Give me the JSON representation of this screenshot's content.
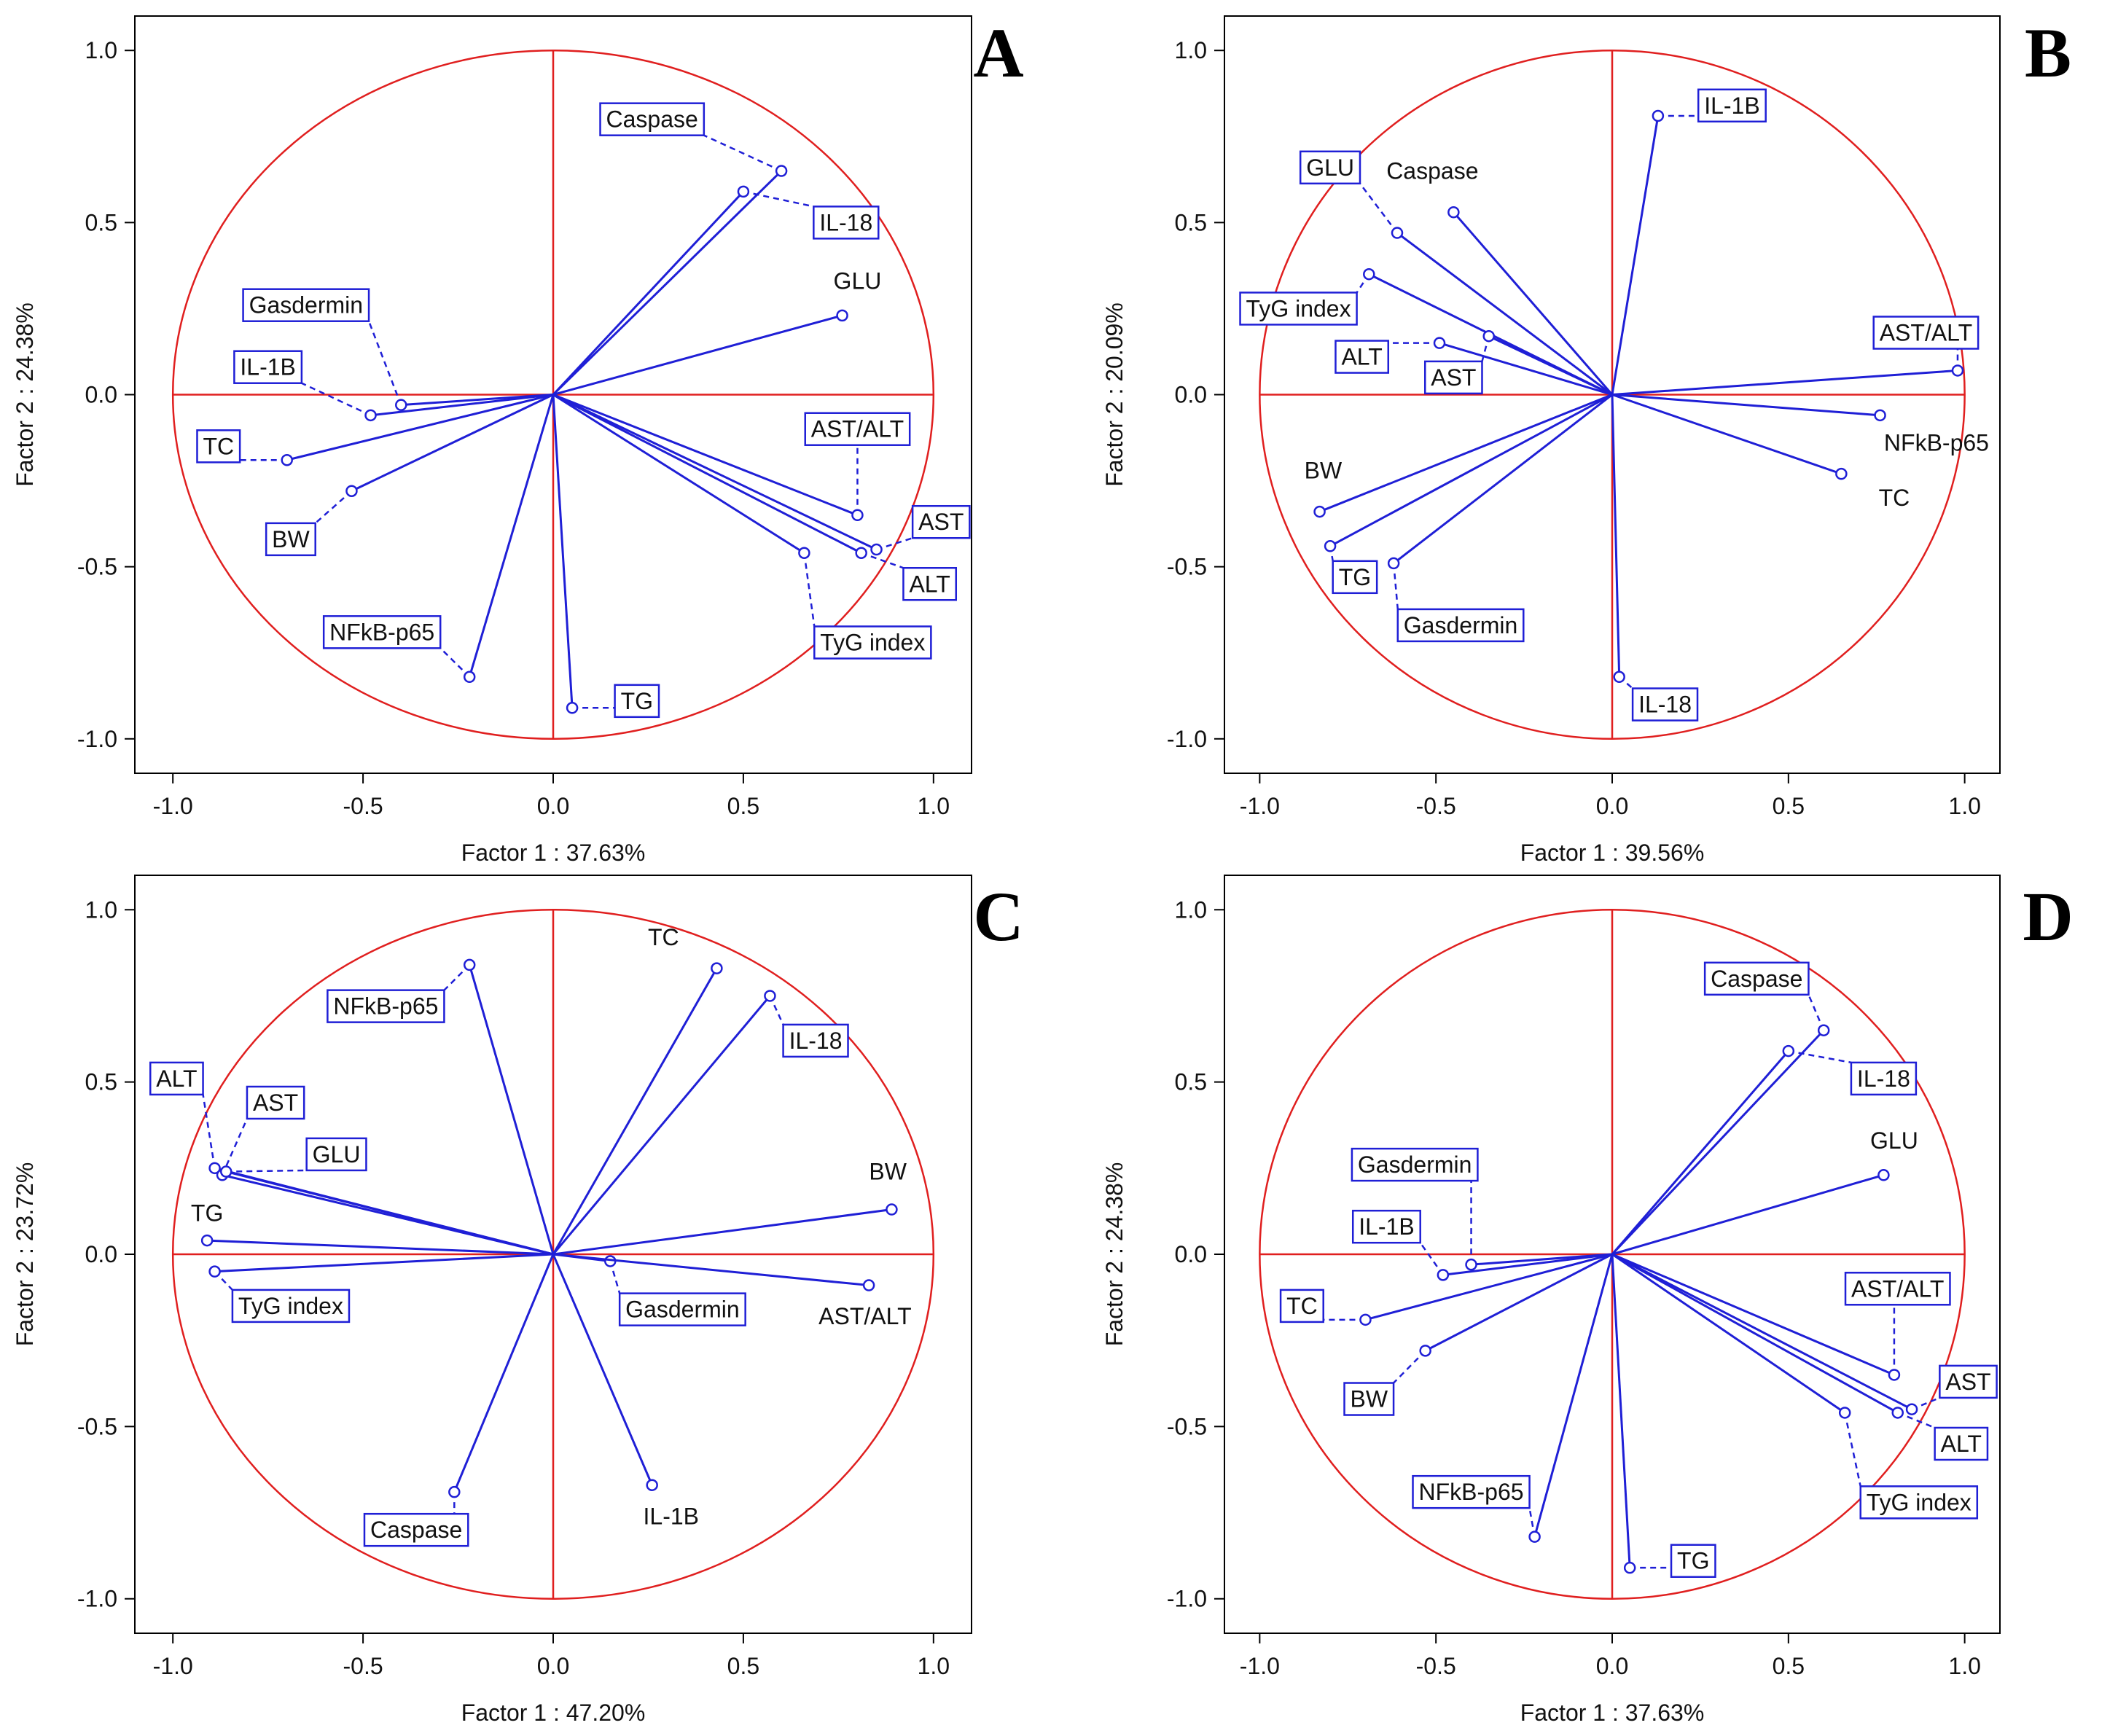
{
  "colors": {
    "vector": "#1f1fd6",
    "circle": "#e01f1f",
    "axis": "#000000"
  },
  "chart_data": [
    {
      "type": "scatter",
      "panel_label": "A",
      "xlabel": "Factor 1 : 37.63%",
      "ylabel": "Factor 2 : 24.38%",
      "xlim": [
        -1.1,
        1.1
      ],
      "ylim": [
        -1.1,
        1.1
      ],
      "xticks": [
        "-1.0",
        "-0.5",
        "0.0",
        "0.5",
        "1.0"
      ],
      "yticks": [
        "1.0",
        "0.5",
        "0.0",
        "-0.5",
        "-1.0"
      ],
      "points": [
        {
          "label": "Caspase",
          "x": 0.6,
          "y": 0.65,
          "boxed": true,
          "lx": 0.26,
          "ly": 0.8
        },
        {
          "label": "IL-18",
          "x": 0.5,
          "y": 0.59,
          "boxed": true,
          "lx": 0.77,
          "ly": 0.5
        },
        {
          "label": "GLU",
          "x": 0.76,
          "y": 0.23,
          "boxed": false,
          "lx": 0.8,
          "ly": 0.33
        },
        {
          "label": "Gasdermin",
          "x": -0.4,
          "y": -0.03,
          "boxed": true,
          "lx": -0.65,
          "ly": 0.26
        },
        {
          "label": "IL-1B",
          "x": -0.48,
          "y": -0.06,
          "boxed": true,
          "lx": -0.75,
          "ly": 0.08
        },
        {
          "label": "TC",
          "x": -0.7,
          "y": -0.19,
          "boxed": true,
          "lx": -0.88,
          "ly": -0.15
        },
        {
          "label": "BW",
          "x": -0.53,
          "y": -0.28,
          "boxed": true,
          "lx": -0.69,
          "ly": -0.42
        },
        {
          "label": "NFkB-p65",
          "x": -0.22,
          "y": -0.82,
          "boxed": true,
          "lx": -0.45,
          "ly": -0.69
        },
        {
          "label": "TG",
          "x": 0.05,
          "y": -0.91,
          "boxed": true,
          "lx": 0.22,
          "ly": -0.89
        },
        {
          "label": "AST/ALT",
          "x": 0.8,
          "y": -0.35,
          "boxed": true,
          "lx": 0.8,
          "ly": -0.1
        },
        {
          "label": "AST",
          "x": 0.85,
          "y": -0.45,
          "boxed": true,
          "lx": 1.02,
          "ly": -0.37
        },
        {
          "label": "ALT",
          "x": 0.81,
          "y": -0.46,
          "boxed": true,
          "lx": 0.99,
          "ly": -0.55
        },
        {
          "label": "TyG index",
          "x": 0.66,
          "y": -0.46,
          "boxed": true,
          "lx": 0.84,
          "ly": -0.72
        }
      ]
    },
    {
      "type": "scatter",
      "panel_label": "B",
      "xlabel": "Factor 1 : 39.56%",
      "ylabel": "Factor 2 : 20.09%",
      "xlim": [
        -1.1,
        1.1
      ],
      "ylim": [
        -1.1,
        1.1
      ],
      "xticks": [
        "-1.0",
        "-0.5",
        "0.0",
        "0.5",
        "1.0"
      ],
      "yticks": [
        "1.0",
        "0.5",
        "0.0",
        "-0.5",
        "-1.0"
      ],
      "points": [
        {
          "label": "IL-1B",
          "x": 0.13,
          "y": 0.81,
          "boxed": true,
          "lx": 0.34,
          "ly": 0.84
        },
        {
          "label": "Caspase",
          "x": -0.45,
          "y": 0.53,
          "boxed": false,
          "lx": -0.51,
          "ly": 0.65
        },
        {
          "label": "GLU",
          "x": -0.61,
          "y": 0.47,
          "boxed": true,
          "lx": -0.8,
          "ly": 0.66
        },
        {
          "label": "TyG index",
          "x": -0.69,
          "y": 0.35,
          "boxed": true,
          "lx": -0.89,
          "ly": 0.25
        },
        {
          "label": "ALT",
          "x": -0.49,
          "y": 0.15,
          "boxed": true,
          "lx": -0.71,
          "ly": 0.11
        },
        {
          "label": "AST",
          "x": -0.35,
          "y": 0.17,
          "boxed": true,
          "lx": -0.45,
          "ly": 0.05
        },
        {
          "label": "AST/ALT",
          "x": 0.98,
          "y": 0.07,
          "boxed": true,
          "lx": 0.89,
          "ly": 0.18
        },
        {
          "label": "NFkB-p65",
          "x": 0.76,
          "y": -0.06,
          "boxed": false,
          "lx": 0.92,
          "ly": -0.14
        },
        {
          "label": "TC",
          "x": 0.65,
          "y": -0.23,
          "boxed": false,
          "lx": 0.8,
          "ly": -0.3
        },
        {
          "label": "BW",
          "x": -0.83,
          "y": -0.34,
          "boxed": false,
          "lx": -0.82,
          "ly": -0.22
        },
        {
          "label": "TG",
          "x": -0.8,
          "y": -0.44,
          "boxed": true,
          "lx": -0.73,
          "ly": -0.53
        },
        {
          "label": "Gasdermin",
          "x": -0.62,
          "y": -0.49,
          "boxed": true,
          "lx": -0.43,
          "ly": -0.67
        },
        {
          "label": "IL-18",
          "x": 0.02,
          "y": -0.82,
          "boxed": true,
          "lx": 0.15,
          "ly": -0.9
        }
      ]
    },
    {
      "type": "scatter",
      "panel_label": "C",
      "xlabel": "Factor 1 : 47.20%",
      "ylabel": "Factor 2 : 23.72%",
      "xlim": [
        -1.1,
        1.1
      ],
      "ylim": [
        -1.1,
        1.1
      ],
      "xticks": [
        "-1.0",
        "-0.5",
        "0.0",
        "0.5",
        "1.0"
      ],
      "yticks": [
        "1.0",
        "0.5",
        "0.0",
        "-0.5",
        "-1.0"
      ],
      "points": [
        {
          "label": "NFkB-p65",
          "x": -0.22,
          "y": 0.84,
          "boxed": true,
          "lx": -0.44,
          "ly": 0.72
        },
        {
          "label": "TC",
          "x": 0.43,
          "y": 0.83,
          "boxed": false,
          "lx": 0.29,
          "ly": 0.92
        },
        {
          "label": "IL-18",
          "x": 0.57,
          "y": 0.75,
          "boxed": true,
          "lx": 0.69,
          "ly": 0.62
        },
        {
          "label": "ALT",
          "x": -0.89,
          "y": 0.25,
          "boxed": true,
          "lx": -0.99,
          "ly": 0.51
        },
        {
          "label": "AST",
          "x": -0.87,
          "y": 0.23,
          "boxed": true,
          "lx": -0.73,
          "ly": 0.44
        },
        {
          "label": "GLU",
          "x": -0.86,
          "y": 0.24,
          "boxed": true,
          "lx": -0.57,
          "ly": 0.29
        },
        {
          "label": "BW",
          "x": 0.89,
          "y": 0.13,
          "boxed": false,
          "lx": 0.88,
          "ly": 0.24
        },
        {
          "label": "TG",
          "x": -0.91,
          "y": 0.04,
          "boxed": false,
          "lx": -0.91,
          "ly": 0.12
        },
        {
          "label": "TyG index",
          "x": -0.89,
          "y": -0.05,
          "boxed": true,
          "lx": -0.69,
          "ly": -0.15
        },
        {
          "label": "Gasdermin",
          "x": 0.15,
          "y": -0.02,
          "boxed": true,
          "lx": 0.34,
          "ly": -0.16
        },
        {
          "label": "AST/ALT",
          "x": 0.83,
          "y": -0.09,
          "boxed": false,
          "lx": 0.82,
          "ly": -0.18
        },
        {
          "label": "Caspase",
          "x": -0.26,
          "y": -0.69,
          "boxed": true,
          "lx": -0.36,
          "ly": -0.8
        },
        {
          "label": "IL-1B",
          "x": 0.26,
          "y": -0.67,
          "boxed": false,
          "lx": 0.31,
          "ly": -0.76
        }
      ]
    },
    {
      "type": "scatter",
      "panel_label": "D",
      "xlabel": "Factor 1 : 37.63%",
      "ylabel": "Factor 2 : 24.38%",
      "xlim": [
        -1.1,
        1.1
      ],
      "ylim": [
        -1.1,
        1.1
      ],
      "xticks": [
        "-1.0",
        "-0.5",
        "0.0",
        "0.5",
        "1.0"
      ],
      "yticks": [
        "1.0",
        "0.5",
        "0.0",
        "-0.5",
        "-1.0"
      ],
      "points": [
        {
          "label": "Caspase",
          "x": 0.6,
          "y": 0.65,
          "boxed": true,
          "lx": 0.41,
          "ly": 0.8
        },
        {
          "label": "IL-18",
          "x": 0.5,
          "y": 0.59,
          "boxed": true,
          "lx": 0.77,
          "ly": 0.51
        },
        {
          "label": "GLU",
          "x": 0.77,
          "y": 0.23,
          "boxed": false,
          "lx": 0.8,
          "ly": 0.33
        },
        {
          "label": "Gasdermin",
          "x": -0.4,
          "y": -0.03,
          "boxed": true,
          "lx": -0.56,
          "ly": 0.26
        },
        {
          "label": "IL-1B",
          "x": -0.48,
          "y": -0.06,
          "boxed": true,
          "lx": -0.64,
          "ly": 0.08
        },
        {
          "label": "TC",
          "x": -0.7,
          "y": -0.19,
          "boxed": true,
          "lx": -0.88,
          "ly": -0.15
        },
        {
          "label": "BW",
          "x": -0.53,
          "y": -0.28,
          "boxed": true,
          "lx": -0.69,
          "ly": -0.42
        },
        {
          "label": "NFkB-p65",
          "x": -0.22,
          "y": -0.82,
          "boxed": true,
          "lx": -0.4,
          "ly": -0.69
        },
        {
          "label": "TG",
          "x": 0.05,
          "y": -0.91,
          "boxed": true,
          "lx": 0.23,
          "ly": -0.89
        },
        {
          "label": "AST/ALT",
          "x": 0.8,
          "y": -0.35,
          "boxed": true,
          "lx": 0.81,
          "ly": -0.1
        },
        {
          "label": "AST",
          "x": 0.85,
          "y": -0.45,
          "boxed": true,
          "lx": 1.01,
          "ly": -0.37
        },
        {
          "label": "ALT",
          "x": 0.81,
          "y": -0.46,
          "boxed": true,
          "lx": 0.99,
          "ly": -0.55
        },
        {
          "label": "TyG index",
          "x": 0.66,
          "y": -0.46,
          "boxed": true,
          "lx": 0.87,
          "ly": -0.72
        }
      ]
    }
  ]
}
